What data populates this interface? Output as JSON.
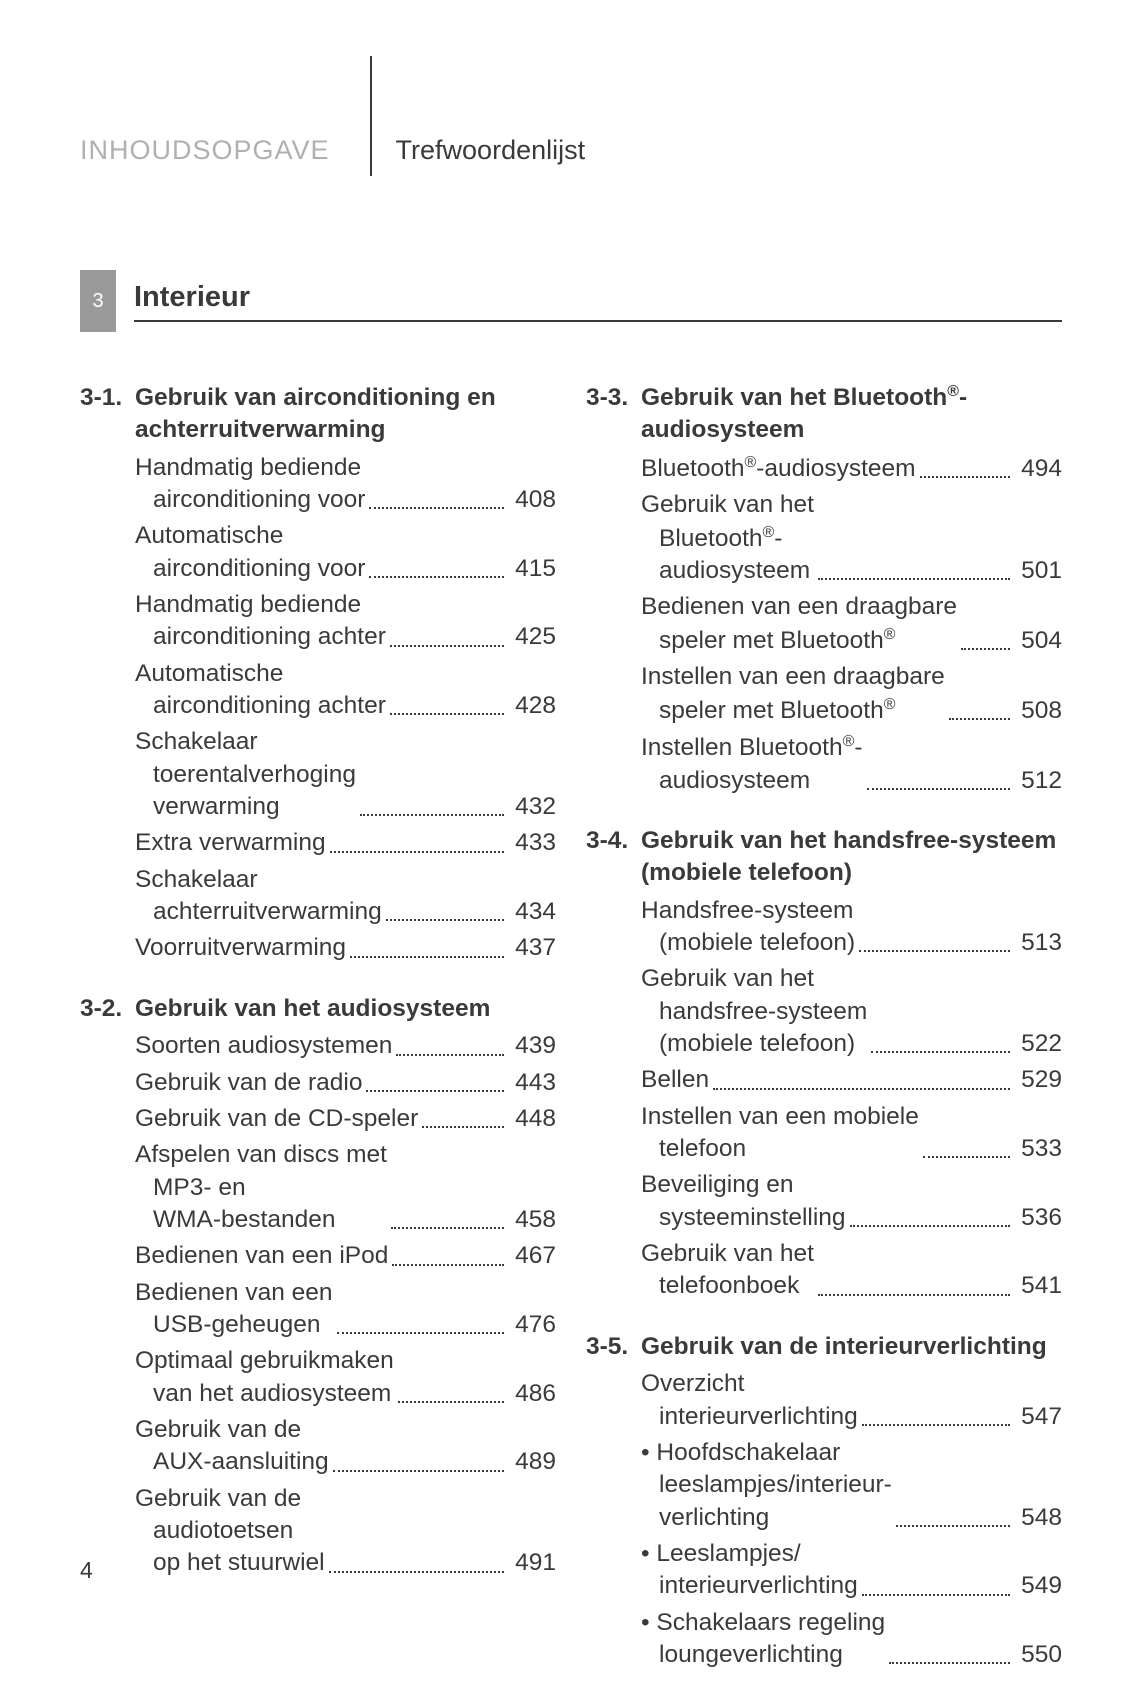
{
  "header": {
    "left": "INHOUDSOPGAVE",
    "right": "Trefwoordenlijst"
  },
  "section": {
    "number": "3",
    "title": "Interieur"
  },
  "pageNumber": "4",
  "colors": {
    "text": "#3a3a3a",
    "muted": "#b0b0b0",
    "sectionBg": "#9a9a9a",
    "white": "#ffffff"
  },
  "leftColumn": [
    {
      "num": "3-1.",
      "title": "Gebruik van airconditioning en achterruitverwarming",
      "entries": [
        {
          "lines": [
            "Handmatig bediende",
            "airconditioning voor"
          ],
          "page": "408"
        },
        {
          "lines": [
            "Automatische",
            "airconditioning voor"
          ],
          "page": "415"
        },
        {
          "lines": [
            "Handmatig bediende",
            "airconditioning achter"
          ],
          "page": "425"
        },
        {
          "lines": [
            "Automatische",
            "airconditioning achter"
          ],
          "page": "428"
        },
        {
          "lines": [
            "Schakelaar",
            "toerentalverhoging",
            "verwarming"
          ],
          "page": "432"
        },
        {
          "lines": [
            "Extra verwarming"
          ],
          "page": "433"
        },
        {
          "lines": [
            "Schakelaar",
            "achterruitverwarming"
          ],
          "page": "434"
        },
        {
          "lines": [
            "Voorruitverwarming"
          ],
          "page": "437"
        }
      ]
    },
    {
      "num": "3-2.",
      "title": "Gebruik van het audiosysteem",
      "entries": [
        {
          "lines": [
            "Soorten audiosystemen"
          ],
          "page": "439"
        },
        {
          "lines": [
            "Gebruik van de radio"
          ],
          "page": "443"
        },
        {
          "lines": [
            "Gebruik van de CD-speler"
          ],
          "page": "448"
        },
        {
          "lines": [
            "Afspelen van discs met",
            "MP3- en",
            "WMA-bestanden"
          ],
          "page": "458"
        },
        {
          "lines": [
            "Bedienen van een iPod"
          ],
          "page": "467"
        },
        {
          "lines": [
            "Bedienen van een",
            "USB-geheugen"
          ],
          "page": "476"
        },
        {
          "lines": [
            "Optimaal gebruikmaken",
            "van het audiosysteem"
          ],
          "page": "486"
        },
        {
          "lines": [
            "Gebruik van de",
            "AUX-aansluiting"
          ],
          "page": "489"
        },
        {
          "lines": [
            "Gebruik van de",
            "audiotoetsen",
            "op het stuurwiel"
          ],
          "page": "491"
        }
      ]
    }
  ],
  "rightColumn": [
    {
      "num": "3-3.",
      "titleHtml": "Gebruik van het Bluetooth<sup>®</sup>-audiosysteem",
      "entries": [
        {
          "html": "Bluetooth<sup>®</sup>-audiosysteem",
          "page": "494"
        },
        {
          "linesHtml": [
            "Gebruik van het",
            "Bluetooth<sup>®</sup>-",
            "audiosysteem"
          ],
          "page": "501"
        },
        {
          "linesHtml": [
            "Bedienen van een draagbare",
            "speler met Bluetooth<sup>®</sup>"
          ],
          "page": "504"
        },
        {
          "linesHtml": [
            "Instellen van een draagbare",
            "speler met Bluetooth<sup>®</sup>"
          ],
          "page": "508"
        },
        {
          "linesHtml": [
            "Instellen Bluetooth<sup>®</sup>-",
            "audiosysteem"
          ],
          "page": "512"
        }
      ]
    },
    {
      "num": "3-4.",
      "title": "Gebruik van het handsfree-systeem (mobiele telefoon)",
      "entries": [
        {
          "lines": [
            "Handsfree-systeem",
            "(mobiele telefoon)"
          ],
          "page": "513"
        },
        {
          "lines": [
            "Gebruik van het",
            "handsfree-systeem",
            "(mobiele telefoon)"
          ],
          "page": "522"
        },
        {
          "lines": [
            "Bellen"
          ],
          "page": "529"
        },
        {
          "lines": [
            "Instellen van een mobiele",
            "telefoon"
          ],
          "page": "533"
        },
        {
          "lines": [
            "Beveiliging en",
            "systeeminstelling"
          ],
          "page": "536"
        },
        {
          "lines": [
            "Gebruik van het",
            "telefoonboek"
          ],
          "page": "541"
        }
      ]
    },
    {
      "num": "3-5.",
      "title": "Gebruik van de interieurverlichting",
      "entries": [
        {
          "lines": [
            "Overzicht",
            "interieurverlichting"
          ],
          "page": "547"
        }
      ],
      "bullets": [
        {
          "lines": [
            "Hoofdschakelaar",
            "leeslampjes/interieur-",
            "verlichting"
          ],
          "page": "548"
        },
        {
          "lines": [
            "Leeslampjes/",
            "interieurverlichting"
          ],
          "page": "549"
        },
        {
          "lines": [
            "Schakelaars regeling",
            "loungeverlichting"
          ],
          "page": "550"
        }
      ]
    }
  ]
}
